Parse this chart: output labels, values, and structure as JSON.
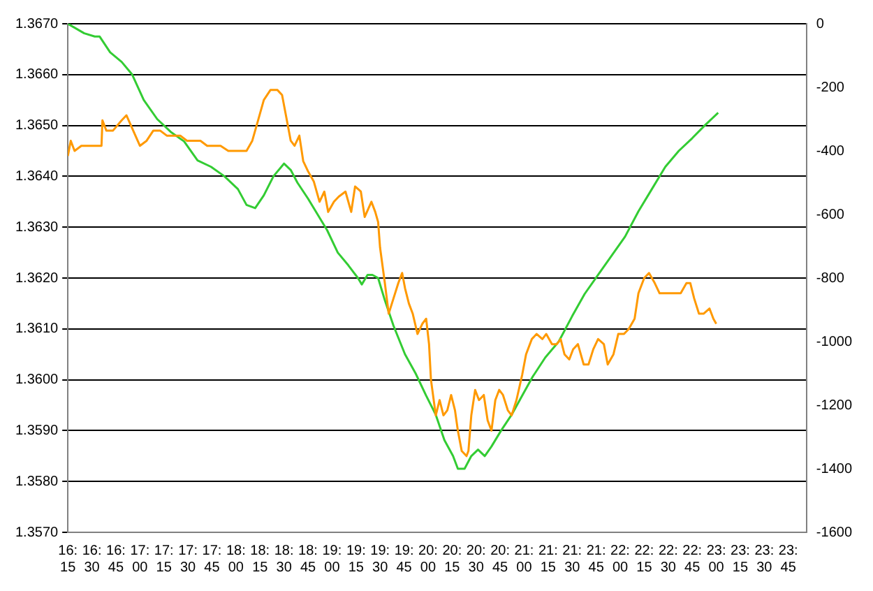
{
  "chart_data": {
    "type": "line",
    "xlim": [
      16.25,
      23.94
    ],
    "xticks": [
      {
        "value": 16.25,
        "label": "16:15"
      },
      {
        "value": 16.5,
        "label": "16:30"
      },
      {
        "value": 16.75,
        "label": "16:45"
      },
      {
        "value": 17,
        "label": "17:00"
      },
      {
        "value": 17.25,
        "label": "17:15"
      },
      {
        "value": 17.5,
        "label": "17:30"
      },
      {
        "value": 17.75,
        "label": "17:45"
      },
      {
        "value": 18,
        "label": "18:00"
      },
      {
        "value": 18.25,
        "label": "18:15"
      },
      {
        "value": 18.5,
        "label": "18:30"
      },
      {
        "value": 18.75,
        "label": "18:45"
      },
      {
        "value": 19,
        "label": "19:00"
      },
      {
        "value": 19.25,
        "label": "19:15"
      },
      {
        "value": 19.5,
        "label": "19:30"
      },
      {
        "value": 19.75,
        "label": "19:45"
      },
      {
        "value": 20,
        "label": "20:00"
      },
      {
        "value": 20.25,
        "label": "20:15"
      },
      {
        "value": 20.5,
        "label": "20:30"
      },
      {
        "value": 20.75,
        "label": "20:45"
      },
      {
        "value": 21,
        "label": "21:00"
      },
      {
        "value": 21.25,
        "label": "21:15"
      },
      {
        "value": 21.5,
        "label": "21:30"
      },
      {
        "value": 21.75,
        "label": "21:45"
      },
      {
        "value": 22,
        "label": "22:00"
      },
      {
        "value": 22.25,
        "label": "22:15"
      },
      {
        "value": 22.5,
        "label": "22:30"
      },
      {
        "value": 22.75,
        "label": "22:45"
      },
      {
        "value": 23,
        "label": "23:00"
      },
      {
        "value": 23.25,
        "label": "23:15"
      },
      {
        "value": 23.5,
        "label": "23:30"
      },
      {
        "value": 23.75,
        "label": "23:45"
      }
    ],
    "ylim": [
      1.357,
      1.367
    ],
    "yticks": [
      {
        "value": 1.357,
        "label": "1.3570"
      },
      {
        "value": 1.358,
        "label": "1.3580"
      },
      {
        "value": 1.359,
        "label": "1.3590"
      },
      {
        "value": 1.36,
        "label": "1.3600"
      },
      {
        "value": 1.361,
        "label": "1.3610"
      },
      {
        "value": 1.362,
        "label": "1.3620"
      },
      {
        "value": 1.363,
        "label": "1.3630"
      },
      {
        "value": 1.364,
        "label": "1.3640"
      },
      {
        "value": 1.365,
        "label": "1.3650"
      },
      {
        "value": 1.366,
        "label": "1.3660"
      },
      {
        "value": 1.367,
        "label": "1.3670"
      }
    ],
    "y2lim": [
      -1600,
      0
    ],
    "y2ticks": [
      -1600,
      -1400,
      -1200,
      -1000,
      -800,
      -600,
      -400,
      -200,
      0
    ],
    "grid": "y",
    "legend": false,
    "marker": "none",
    "line_style": "solid",
    "series": [
      {
        "color": "#ff9900",
        "x": [
          16.25,
          16.28,
          16.32,
          16.39,
          16.49,
          16.6,
          16.61,
          16.65,
          16.72,
          16.81,
          16.86,
          16.93,
          17,
          17.07,
          17.14,
          17.21,
          17.28,
          17.35,
          17.42,
          17.49,
          17.56,
          17.63,
          17.7,
          17.78,
          17.84,
          17.92,
          18.02,
          18.11,
          18.17,
          18.23,
          18.29,
          18.36,
          18.43,
          18.48,
          18.53,
          18.57,
          18.61,
          18.66,
          18.7,
          18.75,
          18.81,
          18.87,
          18.92,
          18.96,
          19.02,
          19.07,
          19.14,
          19.2,
          19.24,
          19.3,
          19.34,
          19.41,
          19.45,
          19.48,
          19.5,
          19.55,
          19.59,
          19.64,
          19.69,
          19.73,
          19.76,
          19.8,
          19.84,
          19.89,
          19.94,
          19.98,
          20.01,
          20.03,
          20.08,
          20.12,
          20.16,
          20.2,
          20.24,
          20.28,
          20.31,
          20.35,
          20.4,
          20.42,
          20.45,
          20.49,
          20.53,
          20.58,
          20.62,
          20.66,
          20.7,
          20.74,
          20.78,
          20.83,
          20.87,
          20.92,
          20.98,
          21.02,
          21.08,
          21.13,
          21.19,
          21.23,
          21.29,
          21.34,
          21.38,
          21.42,
          21.47,
          21.51,
          21.56,
          21.62,
          21.67,
          21.72,
          21.77,
          21.83,
          21.87,
          21.93,
          21.98,
          22.04,
          22.09,
          22.15,
          22.19,
          22.25,
          22.3,
          22.36,
          22.41,
          22.47,
          22.52,
          22.58,
          22.63,
          22.69,
          22.73,
          22.77,
          22.82,
          22.87,
          22.93,
          22.97,
          23
        ],
        "values": [
          1.3644,
          1.3647,
          1.3645,
          1.3646,
          1.3646,
          1.3646,
          1.3651,
          1.3649,
          1.3649,
          1.3651,
          1.3652,
          1.3649,
          1.3646,
          1.3647,
          1.3649,
          1.3649,
          1.3648,
          1.3648,
          1.3648,
          1.3647,
          1.3647,
          1.3647,
          1.3646,
          1.3646,
          1.3646,
          1.3645,
          1.3645,
          1.3645,
          1.3647,
          1.3651,
          1.3655,
          1.3657,
          1.3657,
          1.3656,
          1.3651,
          1.3647,
          1.3646,
          1.3648,
          1.3643,
          1.3641,
          1.3639,
          1.3635,
          1.3637,
          1.3633,
          1.3635,
          1.3636,
          1.3637,
          1.3633,
          1.3638,
          1.3637,
          1.3632,
          1.3635,
          1.3633,
          1.3631,
          1.3626,
          1.3619,
          1.3613,
          1.3616,
          1.3619,
          1.3621,
          1.3618,
          1.3615,
          1.3613,
          1.3609,
          1.3611,
          1.3612,
          1.3607,
          1.36,
          1.3593,
          1.3596,
          1.3593,
          1.3594,
          1.3597,
          1.3594,
          1.359,
          1.3586,
          1.3585,
          1.3586,
          1.3593,
          1.3598,
          1.3596,
          1.3597,
          1.3592,
          1.359,
          1.3596,
          1.3598,
          1.3597,
          1.3594,
          1.3593,
          1.3596,
          1.3601,
          1.3605,
          1.3608,
          1.3609,
          1.3608,
          1.3609,
          1.3607,
          1.3607,
          1.3608,
          1.3605,
          1.3604,
          1.3606,
          1.3607,
          1.3603,
          1.3603,
          1.3606,
          1.3608,
          1.3607,
          1.3603,
          1.3605,
          1.3609,
          1.3609,
          1.361,
          1.3612,
          1.3617,
          1.362,
          1.3621,
          1.3619,
          1.3617,
          1.3617,
          1.3617,
          1.3617,
          1.3617,
          1.3619,
          1.3619,
          1.3616,
          1.3613,
          1.3613,
          1.3614,
          1.3612,
          1.3611
        ]
      },
      {
        "color": "#33cc33",
        "axis": "y2",
        "x": [
          16.25,
          16.42,
          16.53,
          16.58,
          16.69,
          16.81,
          16.92,
          17.04,
          17.18,
          17.32,
          17.46,
          17.6,
          17.74,
          17.88,
          18.02,
          18.11,
          18.2,
          18.29,
          18.39,
          18.5,
          18.57,
          18.64,
          18.75,
          18.85,
          18.95,
          19.06,
          19.17,
          19.27,
          19.31,
          19.37,
          19.42,
          19.48,
          19.55,
          19.64,
          19.76,
          19.87,
          19.98,
          20.08,
          20.17,
          20.26,
          20.31,
          20.38,
          20.45,
          20.52,
          20.59,
          20.66,
          20.76,
          20.87,
          20.98,
          21.09,
          21.22,
          21.36,
          21.5,
          21.63,
          21.77,
          21.91,
          22.05,
          22.19,
          22.33,
          22.47,
          22.61,
          22.75,
          22.88,
          23.02
        ],
        "values": [
          0,
          -30,
          -40,
          -40,
          -90,
          -120,
          -160,
          -240,
          -300,
          -340,
          -370,
          -430,
          -450,
          -480,
          -520,
          -570,
          -580,
          -540,
          -480,
          -440,
          -460,
          -500,
          -550,
          -600,
          -650,
          -720,
          -760,
          -800,
          -820,
          -790,
          -790,
          -800,
          -870,
          -950,
          -1040,
          -1100,
          -1170,
          -1230,
          -1310,
          -1360,
          -1400,
          -1400,
          -1360,
          -1340,
          -1360,
          -1330,
          -1280,
          -1230,
          -1170,
          -1110,
          -1050,
          -1000,
          -920,
          -850,
          -790,
          -730,
          -670,
          -590,
          -520,
          -450,
          -400,
          -360,
          -320,
          -280
        ]
      }
    ]
  }
}
